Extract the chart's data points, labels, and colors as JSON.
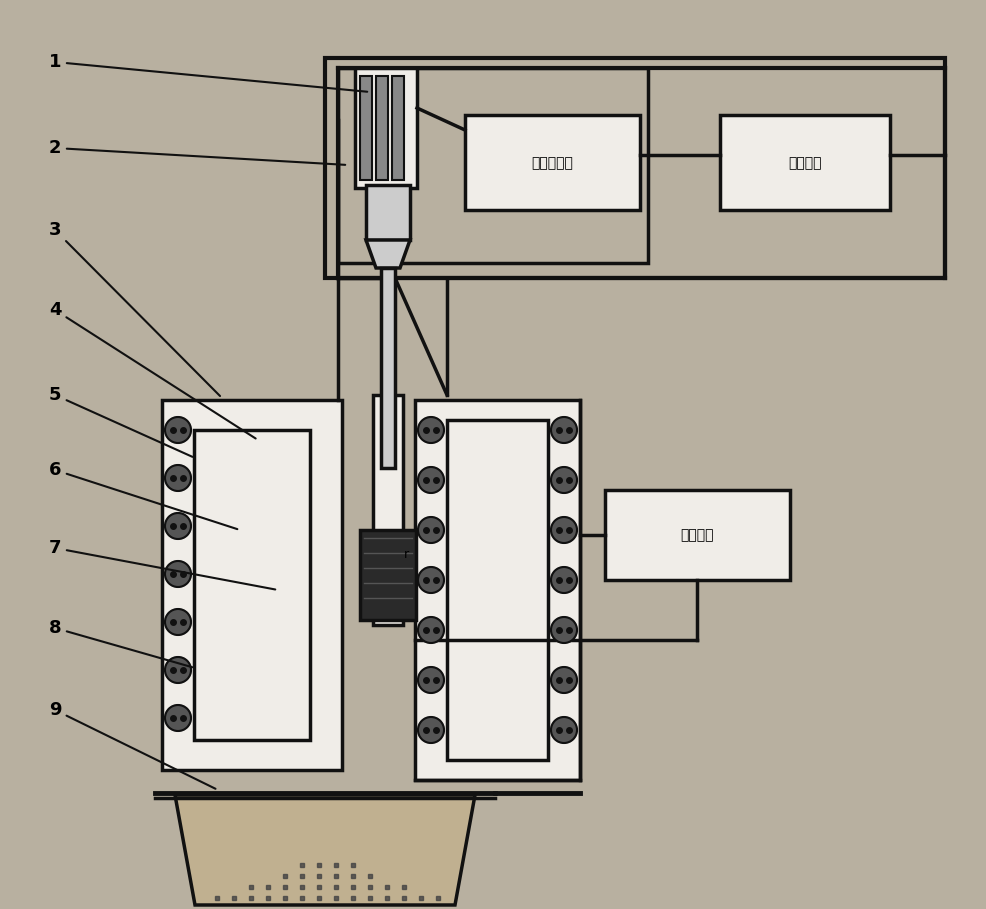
{
  "bg_color": "#b8b0a0",
  "line_color": "#111111",
  "white_fill": "#f0ede8",
  "dark_fill": "#333333",
  "gray_fill": "#888888",
  "box1_text": "超声发生器",
  "box2_text": "水冷系统",
  "box3_text": "温控系统",
  "labels": [
    [
      "1",
      55,
      62,
      370,
      92
    ],
    [
      "2",
      55,
      148,
      348,
      165
    ],
    [
      "3",
      55,
      230,
      222,
      398
    ],
    [
      "4",
      55,
      310,
      258,
      440
    ],
    [
      "5",
      55,
      395,
      195,
      458
    ],
    [
      "6",
      55,
      470,
      240,
      530
    ],
    [
      "7",
      55,
      548,
      278,
      590
    ],
    [
      "8",
      55,
      628,
      195,
      668
    ],
    [
      "9",
      55,
      710,
      218,
      790
    ]
  ]
}
